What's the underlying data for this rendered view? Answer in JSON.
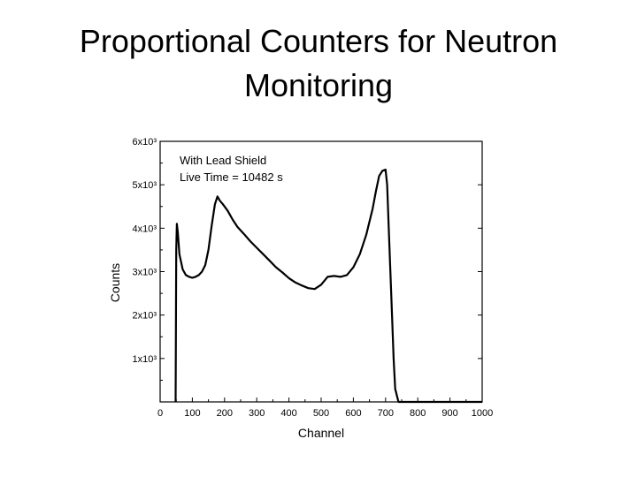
{
  "slide": {
    "title_line1": "Proportional Counters for Neutron",
    "title_line2": "Monitoring"
  },
  "chart_data": {
    "type": "line",
    "title": "",
    "xlabel": "Channel",
    "ylabel": "Counts",
    "xlim": [
      0,
      1000
    ],
    "ylim": [
      0,
      6000
    ],
    "x_ticks": [
      0,
      100,
      200,
      300,
      400,
      500,
      600,
      700,
      800,
      900,
      1000
    ],
    "x_tick_labels": [
      "0",
      "100",
      "200",
      "300",
      "400",
      "500",
      "600",
      "700",
      "800",
      "900",
      "1000"
    ],
    "y_ticks": [
      1000,
      2000,
      3000,
      4000,
      5000,
      6000
    ],
    "y_tick_labels": [
      "1x10³",
      "2x10³",
      "3x10³",
      "4x10³",
      "5x10³",
      "6x10³"
    ],
    "grid": false,
    "annotations": [
      "With Lead Shield",
      "Live Time = 10482 s"
    ],
    "series": [
      {
        "color": "#000000",
        "x": [
          48,
          50,
          52,
          55,
          60,
          70,
          80,
          90,
          100,
          110,
          120,
          130,
          140,
          150,
          160,
          170,
          178,
          185,
          195,
          210,
          225,
          240,
          260,
          280,
          300,
          320,
          340,
          360,
          380,
          400,
          420,
          440,
          460,
          480,
          500,
          520,
          540,
          560,
          580,
          600,
          620,
          640,
          660,
          670,
          680,
          690,
          700,
          705,
          710,
          720,
          725,
          730,
          740,
          760,
          800,
          900,
          1000
        ],
        "y": [
          0,
          3500,
          4100,
          3900,
          3400,
          3050,
          2920,
          2880,
          2860,
          2880,
          2920,
          3000,
          3150,
          3500,
          4050,
          4550,
          4730,
          4640,
          4550,
          4400,
          4200,
          4030,
          3870,
          3700,
          3550,
          3400,
          3250,
          3100,
          2980,
          2850,
          2750,
          2680,
          2620,
          2600,
          2700,
          2880,
          2900,
          2880,
          2920,
          3100,
          3400,
          3850,
          4450,
          4850,
          5200,
          5320,
          5350,
          5000,
          4000,
          2000,
          1000,
          300,
          0,
          0,
          0,
          0,
          0
        ]
      }
    ]
  }
}
